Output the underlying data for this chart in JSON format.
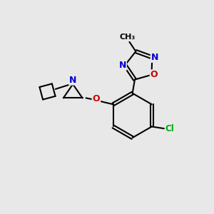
{
  "bg_color": "#e8e8e8",
  "bond_color": "#000000",
  "atom_colors": {
    "N": "#0000cc",
    "O": "#cc0000",
    "Cl": "#00aa00",
    "C": "#000000"
  }
}
